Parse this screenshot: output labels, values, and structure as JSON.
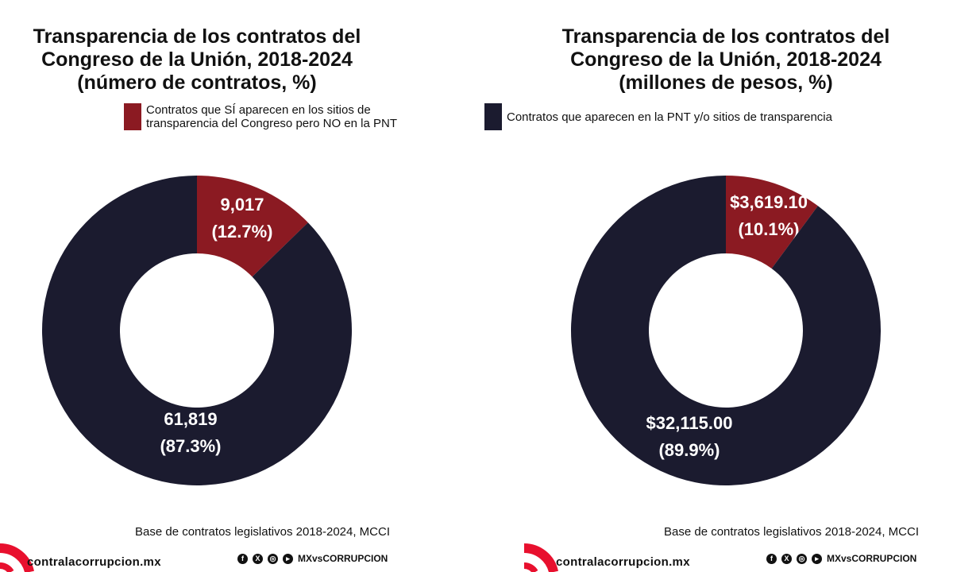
{
  "colors": {
    "red": "#8b1a22",
    "navy": "#1b1b2f",
    "logo": "#e8102e"
  },
  "chart_data": [
    {
      "type": "pie",
      "title": "Transparencia de los contratos del Congreso de la Unión, 2018-2024 (número de contratos, %)",
      "title_lines": [
        "Transparencia de los contratos del",
        "Congreso de la Unión, 2018-2024",
        "(número de contratos, %)"
      ],
      "legend": "Contratos que SÍ aparecen en los sitios de transparencia del Congreso pero NO en la PNT",
      "legend_lines": [
        "Contratos que SÍ aparecen en los sitios de",
        "transparencia del Congreso pero NO en la PNT"
      ],
      "slices": [
        {
          "label": "9,017",
          "pct": "(12.7%)",
          "value": 9017,
          "color": "red"
        },
        {
          "label": "61,819",
          "pct": "(87.3%)",
          "value": 61819,
          "color": "navy"
        }
      ],
      "source": "Base de contratos legislativos 2018-2024, MCCI"
    },
    {
      "type": "pie",
      "title": "Transparencia de los contratos del Congreso de la Unión, 2018-2024 (millones de pesos, %)",
      "title_lines": [
        "Transparencia de los contratos del",
        "Congreso de la Unión, 2018-2024",
        "(millones de pesos, %)"
      ],
      "legend": "Contratos que aparecen en la PNT y/o sitios de transparencia",
      "slices": [
        {
          "label": "$3,619.10",
          "pct": "(10.1%)",
          "value": 3619.1,
          "color": "red"
        },
        {
          "label": "$32,115.00",
          "pct": "(89.9%)",
          "value": 32115.0,
          "color": "navy"
        }
      ],
      "source": "Base de contratos legislativos 2018-2024, MCCI"
    }
  ],
  "footer": {
    "brand": "contralacorrupcion.mx",
    "handle": "MXvsCORRUPCION",
    "icons": [
      "facebook-icon",
      "x-icon",
      "instagram-icon",
      "youtube-icon"
    ]
  }
}
